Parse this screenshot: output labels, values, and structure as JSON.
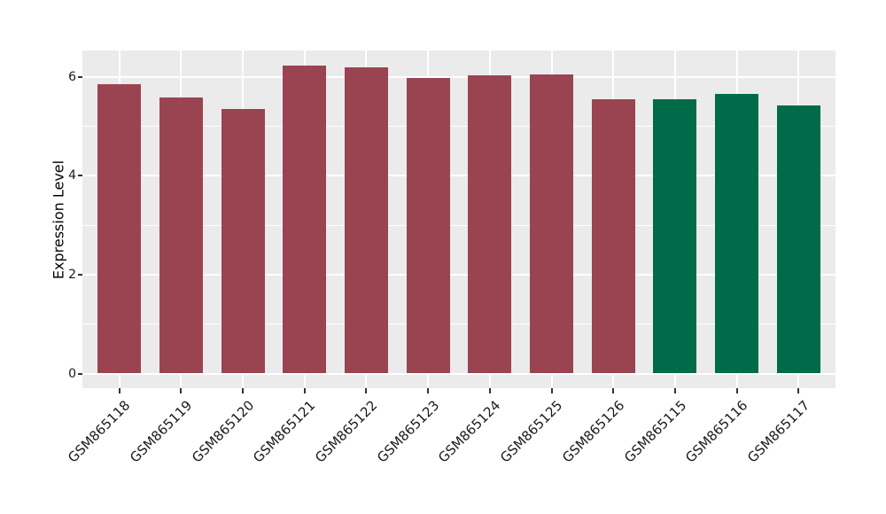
{
  "chart_data": {
    "type": "bar",
    "title": "",
    "xlabel": "",
    "ylabel": "Expression Level",
    "categories": [
      "GSM865118",
      "GSM865119",
      "GSM865120",
      "GSM865121",
      "GSM865122",
      "GSM865123",
      "GSM865124",
      "GSM865125",
      "GSM865126",
      "GSM865115",
      "GSM865116",
      "GSM865117"
    ],
    "values": [
      5.85,
      5.58,
      5.35,
      6.22,
      6.18,
      5.97,
      6.03,
      6.05,
      5.54,
      5.54,
      5.65,
      5.42
    ],
    "bar_colors": [
      "#9a4452",
      "#9a4452",
      "#9a4452",
      "#9a4452",
      "#9a4452",
      "#9a4452",
      "#9a4452",
      "#9a4452",
      "#9a4452",
      "#006b49",
      "#006b49",
      "#006b49"
    ],
    "group_colors": {
      "maroon": "#9a4452",
      "green": "#006b49"
    },
    "ytick_labels": [
      "0",
      "2",
      "4",
      "6"
    ],
    "yticks": [
      0,
      2,
      4,
      6
    ],
    "minor_yticks": [
      1,
      3,
      5
    ],
    "ylim": [
      -0.31,
      6.56
    ],
    "grid": true,
    "legend_position": "none",
    "panel_bg": "#ebebeb",
    "grid_color": "#ffffff"
  }
}
